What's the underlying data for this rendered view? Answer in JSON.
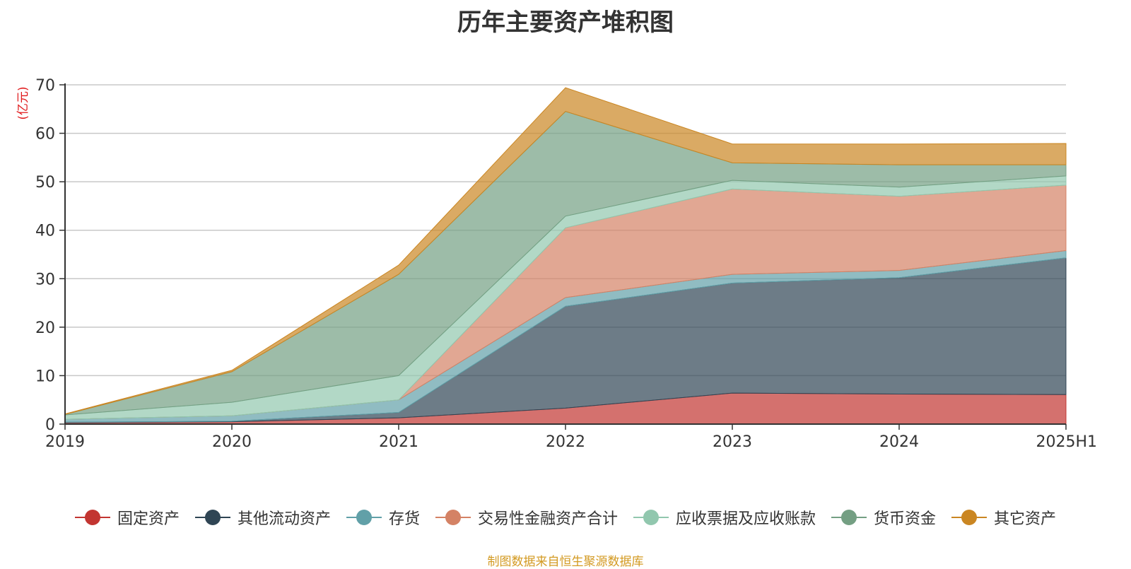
{
  "chart_data": {
    "type": "area",
    "stacked": true,
    "title": "历年主要资产堆积图",
    "ylabel": "(亿元)",
    "xlabel": "",
    "categories": [
      "2019",
      "2020",
      "2021",
      "2022",
      "2023",
      "2024",
      "2025H1"
    ],
    "ylim": [
      0,
      70
    ],
    "yticks": [
      0,
      10,
      20,
      30,
      40,
      50,
      60,
      70
    ],
    "grid": true,
    "legend_position": "bottom",
    "series": [
      {
        "name": "固定资产",
        "color": "#c23531",
        "values": [
          0.3,
          0.5,
          1.3,
          3.3,
          6.4,
          6.2,
          6.1
        ]
      },
      {
        "name": "其他流动资产",
        "color": "#2f4554",
        "values": [
          0.1,
          0.1,
          1.1,
          21.0,
          22.7,
          24.0,
          28.2
        ]
      },
      {
        "name": "存货",
        "color": "#61a0a8",
        "values": [
          0.6,
          1.1,
          2.6,
          1.8,
          1.8,
          1.5,
          1.5
        ]
      },
      {
        "name": "交易性金融资产合计",
        "color": "#d48265",
        "values": [
          0,
          0,
          0,
          14.4,
          17.6,
          15.3,
          13.5
        ]
      },
      {
        "name": "应收票据及应收账款",
        "color": "#91c7ae",
        "values": [
          0.9,
          2.8,
          5.0,
          2.4,
          1.8,
          1.9,
          1.9
        ]
      },
      {
        "name": "货币资金",
        "color": "#749f83",
        "values": [
          0.1,
          6.3,
          20.9,
          21.6,
          3.6,
          4.6,
          2.3
        ]
      },
      {
        "name": "其它资产",
        "color": "#ca8622",
        "values": [
          0.1,
          0.3,
          1.9,
          4.9,
          3.9,
          4.3,
          4.4
        ]
      }
    ]
  },
  "source_note": "制图数据来自恒生聚源数据库"
}
